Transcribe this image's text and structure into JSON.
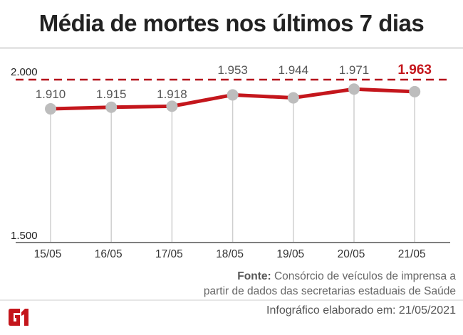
{
  "chart_data": {
    "type": "line",
    "title": "Média de mortes nos últimos 7 dias",
    "categories": [
      "15/05",
      "16/05",
      "17/05",
      "18/05",
      "19/05",
      "20/05",
      "21/05"
    ],
    "values": [
      1910,
      1915,
      1918,
      1953,
      1944,
      1971,
      1963
    ],
    "data_labels": [
      "1.910",
      "1.915",
      "1.918",
      "1.953",
      "1.944",
      "1.971",
      "1.963"
    ],
    "y_tick_labels": [
      "2.000",
      "1.500"
    ],
    "y_ticks": [
      2000,
      1500
    ],
    "ylim": [
      1500,
      2000
    ],
    "reference_line": 2000,
    "highlight_last": true,
    "grid": "vertical drop lines",
    "colors": {
      "line": "#c4161c",
      "marker": "#bdbdbd",
      "highlight": "#c4161c",
      "dash": "#b5121b"
    }
  },
  "source": {
    "label": "Fonte:",
    "text_line1": "Consórcio de veículos de imprensa a",
    "text_line2": "partir de dados das secretarias estaduais de Saúde"
  },
  "credit": "Infográfico elaborado em: 21/05/2021",
  "logo": "G1"
}
